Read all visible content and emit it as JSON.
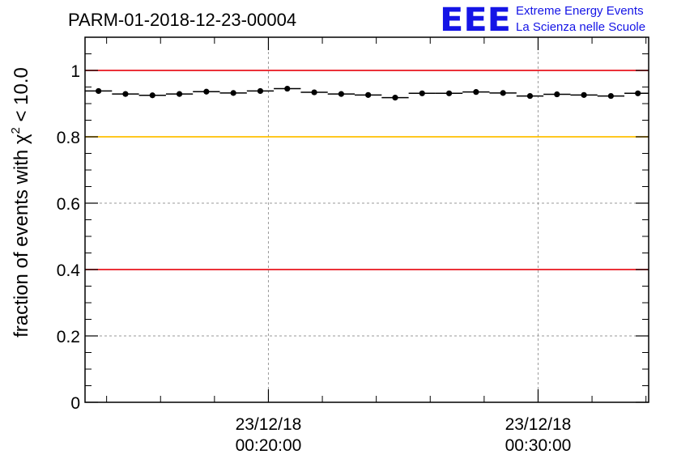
{
  "header": {
    "run_title": "PARM-01-2018-12-23-00004",
    "logo_text": "EEE",
    "logo_line1": "Extreme Energy Events",
    "logo_line2": "La Scienza nelle Scuole"
  },
  "colors": {
    "threshold_high": "#e8141e",
    "threshold_mid": "#ffc000",
    "threshold_low": "#e8141e",
    "grid": "#9a9a9a",
    "data": "#000000",
    "logo": "#1414e6"
  },
  "chart_data": {
    "type": "scatter",
    "title": "PARM-01-2018-12-23-00004",
    "ylabel_prefix": "fraction of events with χ",
    "ylabel_sup": "2",
    "ylabel_suffix": " < 10.0",
    "xlabel": "",
    "ylim": [
      0,
      1.1
    ],
    "y_ticks": [
      0,
      0.2,
      0.4,
      0.6,
      0.8,
      1
    ],
    "y_tick_labels": [
      "0",
      "0.2",
      "0.4",
      "0.6",
      "0.8",
      "1"
    ],
    "x_unit": "minutes since 00:00:00",
    "xlim": [
      13.2,
      34.1
    ],
    "x_ticks": [
      {
        "value": 20,
        "date": "23/12/18",
        "time": "00:20:00"
      },
      {
        "value": 30,
        "date": "23/12/18",
        "time": "00:30:00"
      }
    ],
    "grid": true,
    "bin_width_min": 1,
    "threshold_lines": [
      {
        "y": 1.0,
        "color": "threshold_high"
      },
      {
        "y": 0.8,
        "color": "threshold_mid"
      },
      {
        "y": 0.4,
        "color": "threshold_low"
      }
    ],
    "series": [
      {
        "name": "fraction",
        "x": [
          13.7,
          14.7,
          15.7,
          16.7,
          17.7,
          18.7,
          19.7,
          20.7,
          21.7,
          22.7,
          23.7,
          24.7,
          25.7,
          26.7,
          27.7,
          28.7,
          29.7,
          30.7,
          31.7,
          32.7,
          33.7
        ],
        "y": [
          0.938,
          0.929,
          0.925,
          0.929,
          0.936,
          0.932,
          0.938,
          0.945,
          0.934,
          0.929,
          0.926,
          0.918,
          0.931,
          0.931,
          0.935,
          0.932,
          0.923,
          0.928,
          0.926,
          0.923,
          0.931
        ]
      }
    ]
  }
}
